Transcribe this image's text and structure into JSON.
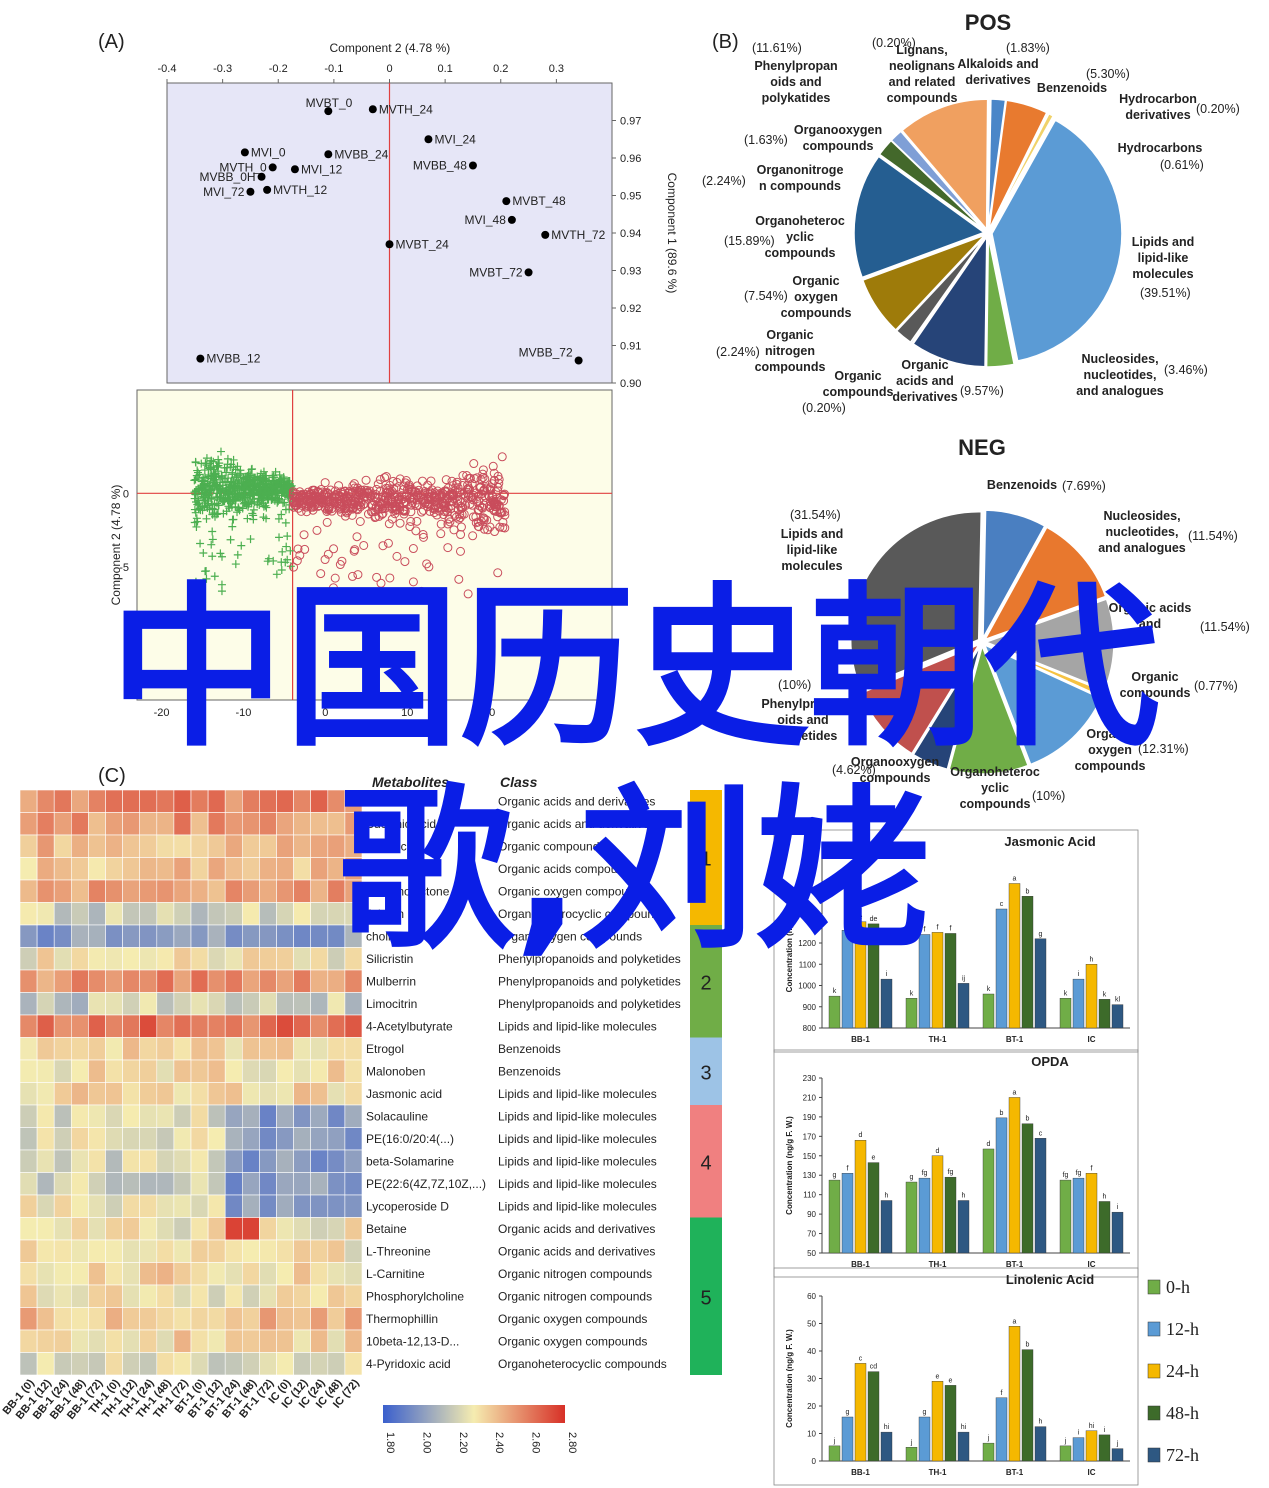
{
  "panels": {
    "a": "(A)",
    "b": "(B)",
    "c": "(C)"
  },
  "overlay": {
    "line1": "中国历史朝代",
    "line2": "歌,刘姥"
  },
  "chart_data": [
    {
      "type": "scatter",
      "id": "A-loadings",
      "xlabel": "Component 2 (4.78 %)",
      "ylabel": "Component 1 (89.6 %)",
      "xlim": [
        -0.4,
        0.4
      ],
      "ylim": [
        0.9,
        0.98
      ],
      "xticks": [
        "-0.4",
        "-0.3",
        "-0.2",
        "-0.1",
        "0",
        "0.1",
        "0.2",
        "0.3"
      ],
      "yticks": [
        "0.97",
        "0.96",
        "0.95",
        "0.94",
        "0.93",
        "0.92",
        "0.91",
        "0.90"
      ],
      "points": [
        {
          "label": "MVBT_0",
          "x": -0.11,
          "y": 0.9725
        },
        {
          "label": "MVTH_24",
          "x": -0.03,
          "y": 0.973
        },
        {
          "label": "MVI_24",
          "x": 0.07,
          "y": 0.965
        },
        {
          "label": "MVI_0",
          "x": -0.26,
          "y": 0.9615
        },
        {
          "label": "MVBB_24",
          "x": -0.11,
          "y": 0.961
        },
        {
          "label": "MVTH_0",
          "x": -0.21,
          "y": 0.9575
        },
        {
          "label": "MVI_12",
          "x": -0.17,
          "y": 0.957
        },
        {
          "label": "MVBB_48",
          "x": 0.15,
          "y": 0.958
        },
        {
          "label": "MVBB_0H",
          "x": -0.23,
          "y": 0.955
        },
        {
          "label": "MVI_72",
          "x": -0.25,
          "y": 0.951
        },
        {
          "label": "MVTH_12",
          "x": -0.22,
          "y": 0.9515
        },
        {
          "label": "MVBT_48",
          "x": 0.21,
          "y": 0.9485
        },
        {
          "label": "MVI_48",
          "x": 0.22,
          "y": 0.9435
        },
        {
          "label": "MVTH_72",
          "x": 0.28,
          "y": 0.9395
        },
        {
          "label": "MVBT_24",
          "x": 0.0,
          "y": 0.937
        },
        {
          "label": "MVBT_72",
          "x": 0.25,
          "y": 0.9295
        },
        {
          "label": "MVBB_12",
          "x": -0.34,
          "y": 0.9065
        },
        {
          "label": "MVBB_72",
          "x": 0.34,
          "y": 0.906
        }
      ],
      "colors": {
        "bg": "#e6e6f7",
        "zero": "#e04040",
        "point": "#000000"
      }
    },
    {
      "type": "scatter",
      "id": "A-scores",
      "xlabel": "Component 1 (89.6 %)",
      "ylabel": "Component 2 (4.78 %)",
      "xlim": [
        -23,
        35
      ],
      "ylim": [
        -14,
        7
      ],
      "xticks": [
        "-20",
        "-10",
        "0",
        "10",
        "20"
      ],
      "yticks": [
        "0",
        "-5"
      ],
      "series": [
        {
          "marker": "plus",
          "color": "#4caf50",
          "count": 650,
          "xrange": [
            -16,
            -4
          ],
          "yrange": [
            -9,
            6
          ]
        },
        {
          "marker": "circle",
          "color": "#c94d5c",
          "count": 650,
          "xrange": [
            -4,
            22
          ],
          "yrange": [
            -13,
            4
          ]
        }
      ],
      "colors": {
        "bg": "#fdfde8",
        "zero": "#e04040"
      }
    },
    {
      "type": "pie",
      "id": "B-pos",
      "title": "POS",
      "slices": [
        {
          "name": "Alkaloids and derivatives",
          "value": 1.83,
          "pct": "(1.83%)",
          "color": "#4a86c8"
        },
        {
          "name": "Benzenoids",
          "value": 5.3,
          "pct": "(5.30%)",
          "color": "#e87a2f"
        },
        {
          "name": "Hydrocarbon derivatives",
          "value": 0.2,
          "pct": "(0.20%)",
          "color": "#f5c242"
        },
        {
          "name": "Hydrocarbons",
          "value": 0.61,
          "pct": "(0.61%)",
          "color": "#f0d26a"
        },
        {
          "name": "Lipids and lipid-like molecules",
          "value": 39.51,
          "pct": "(39.51%)",
          "color": "#5b9bd5"
        },
        {
          "name": "Nucleosides, nucleotides, and analogues",
          "value": 3.46,
          "pct": "(3.46%)",
          "color": "#70ad47"
        },
        {
          "name": "Organic acids and derivatives",
          "value": 9.57,
          "pct": "(9.57%)",
          "color": "#264478"
        },
        {
          "name": "Organic compounds",
          "value": 0.2,
          "pct": "(0.20%)",
          "color": "#a5a5a5"
        },
        {
          "name": "Organic nitrogen compounds",
          "value": 2.24,
          "pct": "(2.24%)",
          "color": "#595959"
        },
        {
          "name": "Organic oxygen compounds",
          "value": 7.54,
          "pct": "(7.54%)",
          "color": "#9e7b0a"
        },
        {
          "name": "Organoheterocyclic compounds",
          "value": 15.89,
          "pct": "(15.89%)",
          "color": "#255e91"
        },
        {
          "name": "Organonitrogen compounds",
          "value": 2.24,
          "pct": "(2.24%)",
          "color": "#43682b"
        },
        {
          "name": "Organooxygen compounds",
          "value": 1.63,
          "pct": "(1.63%)",
          "color": "#7f9fd6"
        },
        {
          "name": "Phenylpropanoids and polyketides",
          "value": 11.61,
          "pct": "(11.61%)",
          "color": "#f0a060"
        },
        {
          "name": "Lignans, neolignans and related compounds",
          "value": 0.2,
          "pct": "(0.20%)",
          "color": "#d8d8d8"
        }
      ]
    },
    {
      "type": "pie",
      "id": "B-neg",
      "title": "NEG",
      "slices": [
        {
          "name": "Benzenoids",
          "value": 7.69,
          "pct": "(7.69%)",
          "color": "#4a7fc1"
        },
        {
          "name": "Nucleosides, nucleotides, and analogues",
          "value": 11.54,
          "pct": "(11.54%)",
          "color": "#e8782e"
        },
        {
          "name": "Organic acids and derivatives",
          "value": 11.54,
          "pct": "(11.54%)",
          "color": "#a5a5a5"
        },
        {
          "name": "Organic compounds",
          "value": 0.77,
          "pct": "(0.77%)",
          "color": "#f5c242"
        },
        {
          "name": "Organic oxygen compounds",
          "value": 12.31,
          "pct": "(12.31%)",
          "color": "#5b9bd5"
        },
        {
          "name": "Organoheterocyclic compounds",
          "value": 10,
          "pct": "(10%)",
          "color": "#70ad47"
        },
        {
          "name": "Organooxygen compounds",
          "value": 4.62,
          "pct": "(4.62%)",
          "color": "#264478"
        },
        {
          "name": "Phenylpropanoids and polyketides",
          "value": 10,
          "pct": "(10%)",
          "color": "#c0504d"
        },
        {
          "name": "Lipids and lipid-like molecules",
          "value": 31.54,
          "pct": "(31.54%)",
          "color": "#595959"
        }
      ]
    },
    {
      "type": "heatmap",
      "id": "C-heatmap",
      "samples": [
        "BB-1 (0)",
        "BB-1 (12)",
        "BB-1 (24)",
        "BB-1 (48)",
        "BB-1 (72)",
        "TH-1 (0)",
        "TH-1 (12)",
        "TH-1 (24)",
        "TH-1 (48)",
        "TH-1 (72)",
        "BT-1 (0)",
        "BT-1 (12)",
        "BT-1 (24)",
        "BT-1 (48)",
        "BT-1 (72)",
        "IC (0)",
        "IC (12)",
        "IC (24)",
        "IC (48)",
        "IC (72)"
      ],
      "rows": [
        {
          "metabolite": "Malonic acid",
          "class": "Organic acids and derivatives"
        },
        {
          "metabolite": "Succinic acid",
          "class": "Organic acids and derivatives"
        },
        {
          "metabolite": "Myristic",
          "class": "Organic compounds"
        },
        {
          "metabolite": "Tartaric acid",
          "class": "Organic acids compounds"
        },
        {
          "metabolite": "Gluconolactone",
          "class": "Organic oxygen compounds"
        },
        {
          "metabolite": "Arbutin",
          "class": "Organoheterocyclic compounds"
        },
        {
          "metabolite": "choline",
          "class": "Organooxygen compounds"
        },
        {
          "metabolite": "Silicristin",
          "class": "Phenylpropanoids and polyketides"
        },
        {
          "metabolite": "Mulberrin",
          "class": "Phenylpropanoids and polyketides"
        },
        {
          "metabolite": "Limocitrin",
          "class": "Phenylpropanoids and polyketides"
        },
        {
          "metabolite": "4-Acetylbutyrate",
          "class": "Lipids and lipid-like molecules"
        },
        {
          "metabolite": "Etrogol",
          "class": "Benzenoids"
        },
        {
          "metabolite": "Malonoben",
          "class": "Benzenoids"
        },
        {
          "metabolite": "Jasmonic acid",
          "class": "Lipids and lipid-like molecules"
        },
        {
          "metabolite": "Solacauline",
          "class": "Lipids and lipid-like molecules"
        },
        {
          "metabolite": "PE(16:0/20:4(...)",
          "class": "Lipids and lipid-like molecules"
        },
        {
          "metabolite": "beta-Solamarine",
          "class": "Lipids and lipid-like molecules"
        },
        {
          "metabolite": "PE(22:6(4Z,7Z,10Z,...)",
          "class": "Lipids and lipid-like molecules"
        },
        {
          "metabolite": "Lycoperoside D",
          "class": "Lipids and lipid-like molecules"
        },
        {
          "metabolite": "Betaine",
          "class": "Organic acids and derivatives"
        },
        {
          "metabolite": "L-Threonine",
          "class": "Organic acids and derivatives"
        },
        {
          "metabolite": "L-Carnitine",
          "class": "Organic nitrogen compounds"
        },
        {
          "metabolite": "Phosphorylcholine",
          "class": "Organic nitrogen compounds"
        },
        {
          "metabolite": "Thermophillin",
          "class": "Organic oxygen compounds"
        },
        {
          "metabolite": "10beta-12,13-D...",
          "class": "Organic oxygen compounds"
        },
        {
          "metabolite": "4-Pyridoxic acid",
          "class": "Organoheterocyclic compounds"
        }
      ],
      "header_metabolites": "Metabolites",
      "header_class": "Class",
      "clusters": [
        {
          "label": "1",
          "rows": 6,
          "color": "#f5b800"
        },
        {
          "label": "2",
          "rows": 5,
          "color": "#70ad47"
        },
        {
          "label": "3",
          "rows": 3,
          "color": "#9dc3e6"
        },
        {
          "label": "4",
          "rows": 5,
          "color": "#f08080"
        },
        {
          "label": "5",
          "rows": 7,
          "color": "#1fb25a"
        }
      ],
      "colorbar": {
        "ticks": [
          "1.80",
          "2.00",
          "2.20",
          "2.40",
          "2.60",
          "2.80"
        ],
        "colors": [
          "#3a5fcd",
          "#f5ecb0",
          "#d73027"
        ]
      }
    },
    {
      "type": "bar",
      "id": "D-jasmonic",
      "title": "Jasmonic Acid",
      "ylabel": "Concentration (ng/g F. W.)",
      "ylim": [
        800,
        1600
      ],
      "yticks": [
        "800",
        "900",
        "1000",
        "1100",
        "1200"
      ],
      "categories": [
        "BB-1",
        "TH-1",
        "BT-1",
        "IC"
      ],
      "series": [
        {
          "name": "0-h",
          "values": [
            950,
            940,
            960,
            940
          ]
        },
        {
          "name": "12-h",
          "values": [
            1260,
            1240,
            1360,
            1030
          ]
        },
        {
          "name": "24-h",
          "values": [
            1300,
            1250,
            1480,
            1100
          ]
        },
        {
          "name": "48-h",
          "values": [
            1290,
            1245,
            1420,
            935
          ]
        },
        {
          "name": "72-h",
          "values": [
            1030,
            1010,
            1220,
            910
          ]
        }
      ],
      "letters": [
        [
          "k",
          "f",
          "e",
          "de",
          "i"
        ],
        [
          "k",
          "f",
          "f",
          "f",
          "ij"
        ],
        [
          "k",
          "c",
          "a",
          "b",
          "g"
        ],
        [
          "k",
          "i",
          "h",
          "k",
          "kl"
        ]
      ]
    },
    {
      "type": "bar",
      "id": "D-opda",
      "title": "OPDA",
      "ylabel": "Concentration (ng/g F. W.)",
      "ylim": [
        50,
        230
      ],
      "yticks": [
        "50",
        "70",
        "90",
        "110",
        "130",
        "150",
        "170",
        "190",
        "210",
        "230"
      ],
      "categories": [
        "BB-1",
        "TH-1",
        "BT-1",
        "IC"
      ],
      "series": [
        {
          "name": "0-h",
          "values": [
            125,
            123,
            157,
            125
          ]
        },
        {
          "name": "12-h",
          "values": [
            132,
            127,
            189,
            127
          ]
        },
        {
          "name": "24-h",
          "values": [
            166,
            150,
            210,
            132
          ]
        },
        {
          "name": "48-h",
          "values": [
            143,
            128,
            183,
            103
          ]
        },
        {
          "name": "72-h",
          "values": [
            104,
            104,
            168,
            92
          ]
        }
      ],
      "letters": [
        [
          "g",
          "f",
          "d",
          "e",
          "h"
        ],
        [
          "g",
          "fg",
          "d",
          "fg",
          "h"
        ],
        [
          "d",
          "b",
          "a",
          "b",
          "c"
        ],
        [
          "fg",
          "fg",
          "f",
          "h",
          "i"
        ]
      ]
    },
    {
      "type": "bar",
      "id": "D-linolenic",
      "title": "Linolenic Acid",
      "ylabel": "Concentration (ng/g F. W.)",
      "ylim": [
        0,
        60
      ],
      "yticks": [
        "0",
        "10",
        "20",
        "30",
        "40",
        "50",
        "60"
      ],
      "categories": [
        "BB-1",
        "TH-1",
        "BT-1",
        "IC"
      ],
      "series": [
        {
          "name": "0-h",
          "values": [
            5.5,
            5,
            6.5,
            5.5
          ]
        },
        {
          "name": "12-h",
          "values": [
            16,
            16,
            23,
            8.5
          ]
        },
        {
          "name": "24-h",
          "values": [
            35.5,
            29,
            49,
            11
          ]
        },
        {
          "name": "48-h",
          "values": [
            32.5,
            27.5,
            40.5,
            9.5
          ]
        },
        {
          "name": "72-h",
          "values": [
            10.5,
            10.5,
            12.5,
            4.5
          ]
        }
      ],
      "letters": [
        [
          "j",
          "g",
          "c",
          "cd",
          "hi"
        ],
        [
          "j",
          "g",
          "e",
          "e",
          "hi"
        ],
        [
          "j",
          "f",
          "a",
          "b",
          "h"
        ],
        [
          "j",
          "i",
          "hi",
          "i",
          "j"
        ]
      ]
    }
  ],
  "legend": {
    "items": [
      {
        "name": "0-h",
        "color": "#70ad47"
      },
      {
        "name": "12-h",
        "color": "#5b9bd5"
      },
      {
        "name": "24-h",
        "color": "#f5b800"
      },
      {
        "name": "48-h",
        "color": "#3d6b2a"
      },
      {
        "name": "72-h",
        "color": "#2e5882"
      }
    ]
  }
}
